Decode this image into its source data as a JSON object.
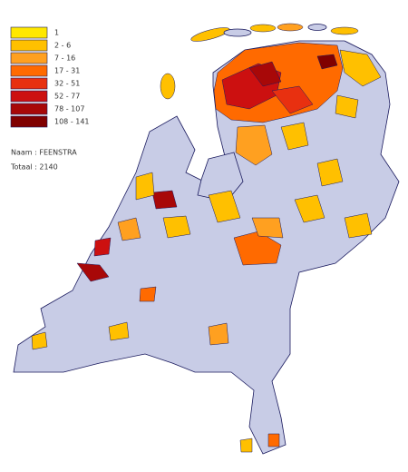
{
  "legend": {
    "items": [
      {
        "label": "1",
        "color": "#ffe800"
      },
      {
        "label": "2 - 6",
        "color": "#ffc000"
      },
      {
        "label": "7 - 16",
        "color": "#ffa020"
      },
      {
        "label": "17 - 31",
        "color": "#ff6a00"
      },
      {
        "label": "32 - 51",
        "color": "#e83010"
      },
      {
        "label": "52 - 77",
        "color": "#cc1010"
      },
      {
        "label": "78 - 107",
        "color": "#a80808"
      },
      {
        "label": "108 - 141",
        "color": "#800000"
      }
    ]
  },
  "info": {
    "name": "Naam : FEENSTRA",
    "total": "Totaal : 2140"
  }
}
